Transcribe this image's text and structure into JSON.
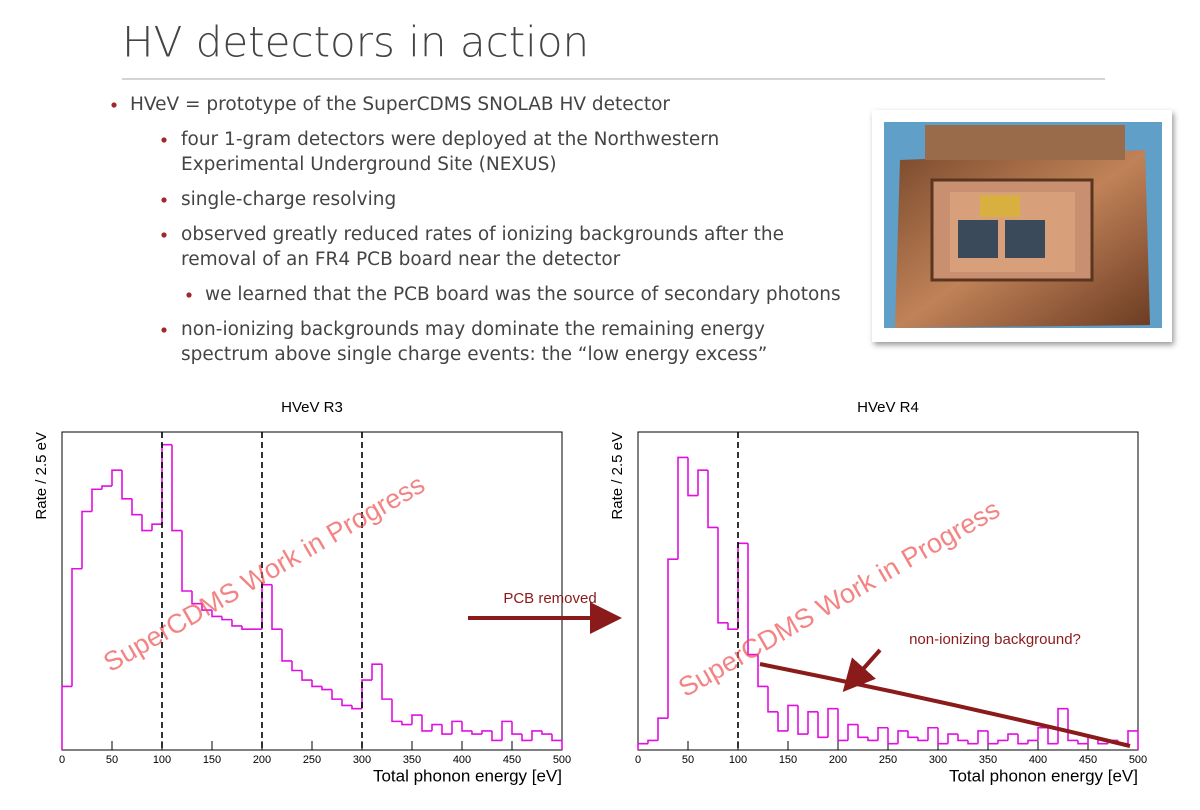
{
  "header": {
    "title": "HV detectors in action"
  },
  "bullets": [
    {
      "lines": [
        "HVeV = prototype of the SuperCDMS SNOLAB HV detector"
      ],
      "children": [
        {
          "lines": [
            "four 1-gram detectors were deployed at the Northwestern",
            "Experimental Underground Site (NEXUS)"
          ]
        },
        {
          "lines": [
            "single-charge resolving"
          ]
        },
        {
          "lines": [
            "observed greatly reduced rates of ionizing backgrounds after the",
            "removal of an FR4 PCB board near the detector"
          ],
          "children": [
            {
              "lines": [
                "we learned that the PCB board was the source of secondary photons"
              ]
            }
          ]
        },
        {
          "lines": [
            "non-ionizing backgrounds may dominate the remaining energy",
            "spectrum above single charge events: the “low energy excess”"
          ]
        }
      ]
    }
  ],
  "annotations": {
    "arrow": "PCB removed",
    "fit": "non-ionizing background?"
  },
  "chart_data": [
    {
      "type": "histogram",
      "title": "HVeV R3",
      "x_label": "Total phonon energy [eV]",
      "y_label": "Rate / 2.5 eV",
      "watermark": "SuperCDMS Work in Progress",
      "color": "#e010e0",
      "bins": [
        0,
        10,
        20,
        30,
        40,
        50,
        60,
        70,
        80,
        90,
        100,
        110,
        120,
        130,
        140,
        150,
        160,
        170,
        180,
        190,
        200,
        210,
        220,
        230,
        240,
        250,
        260,
        270,
        280,
        290,
        300,
        310,
        320,
        330,
        340,
        350,
        360,
        370,
        380,
        390,
        400,
        410,
        420,
        430,
        440,
        450,
        460,
        470,
        480,
        490,
        500
      ],
      "values": [
        20,
        57,
        75,
        82,
        83,
        88,
        79,
        74,
        69,
        71,
        96,
        69,
        50,
        46,
        44,
        42,
        41,
        39,
        38,
        38,
        52,
        38,
        28,
        25,
        22,
        20,
        19,
        16,
        14,
        13,
        22,
        27,
        16,
        9,
        8,
        11,
        6,
        8,
        5,
        9,
        6,
        5,
        6,
        3,
        9,
        5,
        3,
        6,
        5,
        3
      ],
      "xlim": [
        0,
        500
      ],
      "ylim": [
        0,
        100
      ],
      "xticks": [
        0,
        50,
        100,
        150,
        200,
        250,
        300,
        350,
        400,
        450,
        500
      ],
      "vlines": [
        100,
        200,
        300
      ]
    },
    {
      "type": "histogram",
      "title": "HVeV R4",
      "x_label": "Total phonon energy [eV]",
      "y_label": "Rate / 2.5 eV",
      "watermark": "SuperCDMS Work in Progress",
      "color": "#e010e0",
      "bins": [
        0,
        10,
        20,
        30,
        40,
        50,
        60,
        70,
        80,
        90,
        100,
        110,
        120,
        130,
        140,
        150,
        160,
        170,
        180,
        190,
        200,
        210,
        220,
        230,
        240,
        250,
        260,
        270,
        280,
        290,
        300,
        310,
        320,
        330,
        340,
        350,
        360,
        370,
        380,
        390,
        400,
        410,
        420,
        430,
        440,
        450,
        460,
        470,
        480,
        490,
        500
      ],
      "values": [
        2,
        3,
        10,
        60,
        92,
        80,
        88,
        70,
        40,
        38,
        65,
        30,
        20,
        12,
        6,
        14,
        5,
        12,
        4,
        13,
        3,
        8,
        4,
        3,
        7,
        2,
        6,
        4,
        3,
        7,
        2,
        5,
        3,
        2,
        6,
        2,
        3,
        5,
        2,
        3,
        7,
        2,
        13,
        3,
        2,
        4,
        2,
        3,
        2,
        6
      ],
      "xlim": [
        0,
        500
      ],
      "ylim": [
        0,
        100
      ],
      "xticks": [
        0,
        50,
        100,
        150,
        200,
        250,
        300,
        350,
        400,
        450,
        500
      ],
      "vlines": [
        100
      ]
    }
  ]
}
